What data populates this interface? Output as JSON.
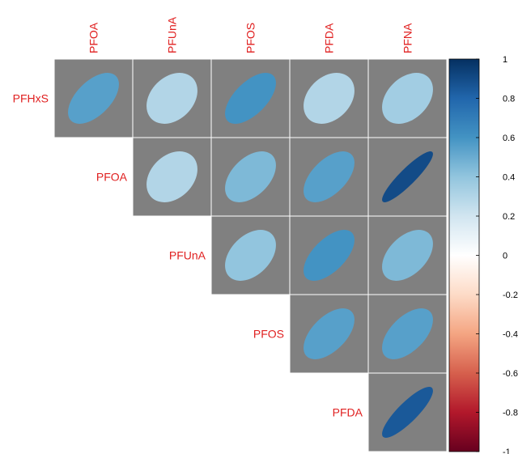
{
  "chart_data": {
    "type": "heatmap",
    "style": "ellipse correlation plot, upper triangle",
    "columns": [
      "PFOA",
      "PFUnA",
      "PFOS",
      "PFDA",
      "PFNA"
    ],
    "rows": [
      "PFHxS",
      "PFOA",
      "PFUnA",
      "PFOS",
      "PFDA"
    ],
    "values": [
      [
        0.55,
        0.3,
        0.6,
        0.3,
        0.35
      ],
      [
        null,
        0.3,
        0.45,
        0.55,
        0.9
      ],
      [
        null,
        null,
        0.4,
        0.6,
        0.45
      ],
      [
        null,
        null,
        null,
        0.55,
        0.55
      ],
      [
        null,
        null,
        null,
        null,
        0.85
      ]
    ],
    "colorbar": {
      "range": [
        -1,
        1
      ],
      "ticks": [
        "1",
        "0.8",
        "0.6",
        "0.4",
        "0.2",
        "0",
        "-0.2",
        "-0.4",
        "-0.6",
        "-0.8",
        "-1"
      ],
      "colors": [
        "#67001F",
        "#B2182B",
        "#D6604D",
        "#F4A582",
        "#FDDBC7",
        "#FFFFFF",
        "#D1E5F0",
        "#92C5DE",
        "#4393C3",
        "#2166AC",
        "#053061"
      ]
    },
    "colors": {
      "label": "#E02020",
      "cell_background": "#808080",
      "cell_border": "#FFFFFF"
    }
  }
}
